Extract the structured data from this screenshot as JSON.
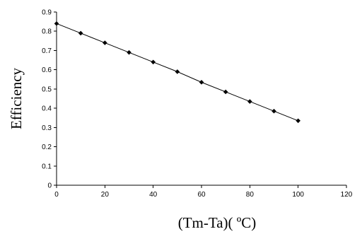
{
  "chart_data": {
    "type": "line",
    "title": "",
    "xlabel": "(Tm-Ta)( ºC)",
    "ylabel": "Efficiency",
    "xlim": [
      0,
      120
    ],
    "ylim": [
      0,
      0.9
    ],
    "xticks": [
      "0",
      "20",
      "40",
      "60",
      "80",
      "100",
      "120"
    ],
    "yticks": [
      "0",
      "0.1",
      "0.2",
      "0.3",
      "0.4",
      "0.5",
      "0.6",
      "0.7",
      "0.8",
      "0.9"
    ],
    "grid": false,
    "legend": "none",
    "series": [
      {
        "color": "#000000",
        "marker": "diamond",
        "x": [
          0,
          10,
          20,
          30,
          40,
          50,
          60,
          70,
          80,
          90,
          100
        ],
        "y": [
          0.84,
          0.79,
          0.74,
          0.69,
          0.64,
          0.59,
          0.535,
          0.485,
          0.435,
          0.385,
          0.335
        ]
      }
    ]
  }
}
